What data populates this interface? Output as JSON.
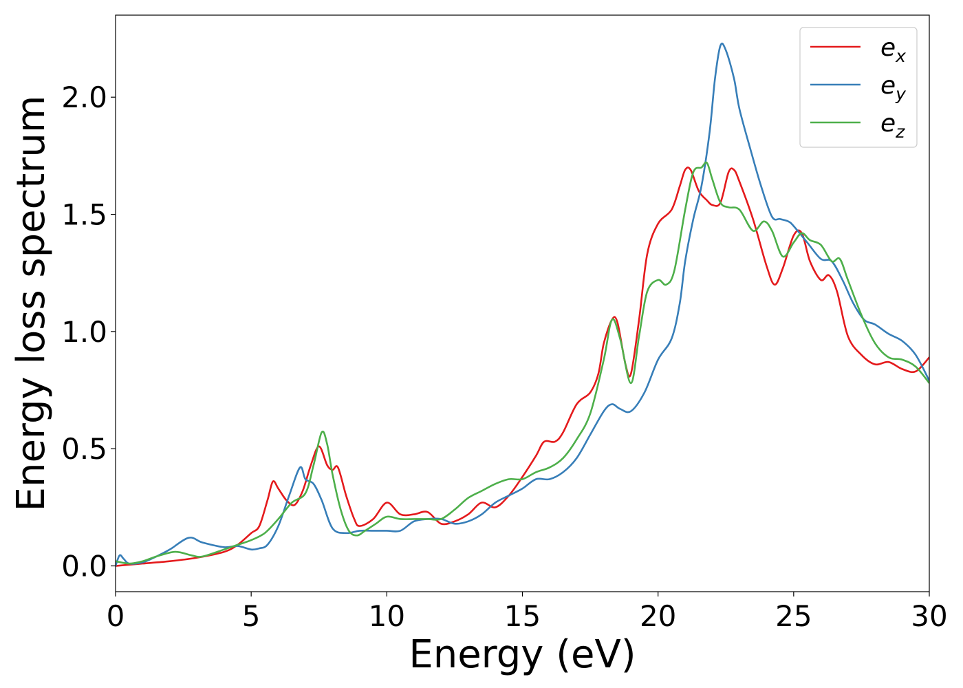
{
  "chart_data": {
    "type": "line",
    "title": "",
    "xlabel": "Energy (eV)",
    "ylabel": "Energy loss spectrum",
    "xlim": [
      0,
      30
    ],
    "ylim": [
      -0.11,
      2.35
    ],
    "xticks": [
      0,
      5,
      10,
      15,
      20,
      25,
      30
    ],
    "yticks": [
      0.0,
      0.5,
      1.0,
      1.5,
      2.0
    ],
    "xtick_labels": [
      "0",
      "5",
      "10",
      "15",
      "20",
      "25",
      "30"
    ],
    "ytick_labels": [
      "0.0",
      "0.5",
      "1.0",
      "1.5",
      "2.0"
    ],
    "grid": false,
    "legend_position": "top-right",
    "series": [
      {
        "name": "e_x",
        "legend_base": "e",
        "legend_sub": "x",
        "color": "#e41a1c",
        "x": [
          0.0,
          0.5,
          1.0,
          2.0,
          3.0,
          4.0,
          4.5,
          5.0,
          5.3,
          5.6,
          5.8,
          6.0,
          6.3,
          6.6,
          6.9,
          7.2,
          7.5,
          7.8,
          8.0,
          8.2,
          8.5,
          8.8,
          9.0,
          9.5,
          10.0,
          10.5,
          11.0,
          11.5,
          12.0,
          12.5,
          13.0,
          13.5,
          14.0,
          14.5,
          15.0,
          15.5,
          15.8,
          16.2,
          16.5,
          17.0,
          17.5,
          17.8,
          18.0,
          18.3,
          18.5,
          18.8,
          19.0,
          19.3,
          19.6,
          20.0,
          20.5,
          20.8,
          21.0,
          21.2,
          21.5,
          21.8,
          22.0,
          22.3,
          22.6,
          22.8,
          23.0,
          23.5,
          24.0,
          24.3,
          24.6,
          25.0,
          25.3,
          25.6,
          26.0,
          26.3,
          26.6,
          27.0,
          27.5,
          28.0,
          28.5,
          29.0,
          29.5,
          30.0
        ],
        "y": [
          0.0,
          0.005,
          0.01,
          0.02,
          0.035,
          0.06,
          0.09,
          0.14,
          0.17,
          0.28,
          0.36,
          0.33,
          0.28,
          0.26,
          0.32,
          0.43,
          0.51,
          0.43,
          0.41,
          0.42,
          0.3,
          0.2,
          0.17,
          0.2,
          0.27,
          0.22,
          0.22,
          0.23,
          0.18,
          0.19,
          0.22,
          0.27,
          0.25,
          0.3,
          0.38,
          0.47,
          0.53,
          0.53,
          0.57,
          0.69,
          0.74,
          0.82,
          0.95,
          1.05,
          1.04,
          0.86,
          0.82,
          1.05,
          1.33,
          1.46,
          1.52,
          1.62,
          1.69,
          1.69,
          1.6,
          1.56,
          1.54,
          1.55,
          1.68,
          1.69,
          1.64,
          1.48,
          1.28,
          1.2,
          1.27,
          1.41,
          1.42,
          1.3,
          1.22,
          1.24,
          1.17,
          0.98,
          0.9,
          0.86,
          0.87,
          0.84,
          0.83,
          0.89
        ]
      },
      {
        "name": "e_y",
        "legend_base": "e",
        "legend_sub": "y",
        "color": "#377eb8",
        "x": [
          0.0,
          0.15,
          0.3,
          0.5,
          1.0,
          1.5,
          2.0,
          2.7,
          3.2,
          4.0,
          4.5,
          5.0,
          5.3,
          5.6,
          6.0,
          6.4,
          6.8,
          7.0,
          7.3,
          7.6,
          8.0,
          8.5,
          9.0,
          9.5,
          10.0,
          10.5,
          11.0,
          11.5,
          12.0,
          12.5,
          13.0,
          13.5,
          14.0,
          14.5,
          15.0,
          15.5,
          16.0,
          16.5,
          17.0,
          17.5,
          18.0,
          18.3,
          18.6,
          19.0,
          19.5,
          20.0,
          20.5,
          20.8,
          21.0,
          21.3,
          21.6,
          21.9,
          22.1,
          22.3,
          22.5,
          22.8,
          23.0,
          23.4,
          23.8,
          24.2,
          24.5,
          24.8,
          25.0,
          25.5,
          26.0,
          26.4,
          26.8,
          27.2,
          27.6,
          28.0,
          28.5,
          29.0,
          29.5,
          30.0
        ],
        "y": [
          0.0,
          0.045,
          0.03,
          0.01,
          0.015,
          0.04,
          0.07,
          0.12,
          0.1,
          0.08,
          0.085,
          0.07,
          0.075,
          0.09,
          0.17,
          0.3,
          0.42,
          0.37,
          0.35,
          0.28,
          0.16,
          0.14,
          0.15,
          0.15,
          0.15,
          0.15,
          0.19,
          0.2,
          0.2,
          0.18,
          0.19,
          0.22,
          0.27,
          0.3,
          0.33,
          0.37,
          0.37,
          0.4,
          0.46,
          0.56,
          0.66,
          0.69,
          0.67,
          0.66,
          0.74,
          0.88,
          0.97,
          1.12,
          1.3,
          1.48,
          1.62,
          1.85,
          2.08,
          2.22,
          2.2,
          2.08,
          1.95,
          1.78,
          1.62,
          1.49,
          1.48,
          1.47,
          1.45,
          1.38,
          1.31,
          1.3,
          1.22,
          1.12,
          1.05,
          1.03,
          0.99,
          0.96,
          0.9,
          0.79
        ]
      },
      {
        "name": "e_z",
        "legend_base": "e",
        "legend_sub": "z",
        "color": "#4daf4a",
        "x": [
          0.0,
          0.5,
          1.0,
          1.5,
          2.2,
          2.8,
          3.2,
          4.0,
          4.5,
          5.0,
          5.5,
          6.0,
          6.5,
          7.0,
          7.3,
          7.6,
          7.8,
          8.0,
          8.3,
          8.6,
          8.9,
          9.2,
          9.6,
          10.0,
          10.5,
          11.0,
          11.5,
          12.0,
          12.5,
          13.0,
          13.5,
          14.0,
          14.5,
          15.0,
          15.5,
          16.0,
          16.5,
          17.0,
          17.5,
          18.0,
          18.3,
          18.6,
          19.0,
          19.3,
          19.6,
          20.0,
          20.3,
          20.6,
          21.0,
          21.3,
          21.6,
          21.8,
          22.0,
          22.3,
          22.6,
          23.0,
          23.5,
          23.9,
          24.2,
          24.6,
          25.0,
          25.3,
          25.6,
          26.0,
          26.4,
          26.7,
          27.0,
          27.5,
          28.0,
          28.5,
          29.0,
          29.5,
          30.0
        ],
        "y": [
          0.02,
          0.01,
          0.02,
          0.04,
          0.06,
          0.045,
          0.04,
          0.07,
          0.09,
          0.11,
          0.14,
          0.2,
          0.27,
          0.31,
          0.43,
          0.57,
          0.52,
          0.39,
          0.24,
          0.15,
          0.13,
          0.15,
          0.18,
          0.21,
          0.2,
          0.2,
          0.2,
          0.2,
          0.24,
          0.29,
          0.32,
          0.35,
          0.37,
          0.37,
          0.4,
          0.42,
          0.46,
          0.54,
          0.65,
          0.88,
          1.05,
          0.97,
          0.78,
          0.98,
          1.17,
          1.22,
          1.2,
          1.26,
          1.52,
          1.68,
          1.7,
          1.72,
          1.65,
          1.55,
          1.53,
          1.52,
          1.43,
          1.47,
          1.43,
          1.32,
          1.38,
          1.42,
          1.39,
          1.37,
          1.3,
          1.31,
          1.22,
          1.07,
          0.95,
          0.89,
          0.88,
          0.85,
          0.78
        ]
      }
    ]
  }
}
